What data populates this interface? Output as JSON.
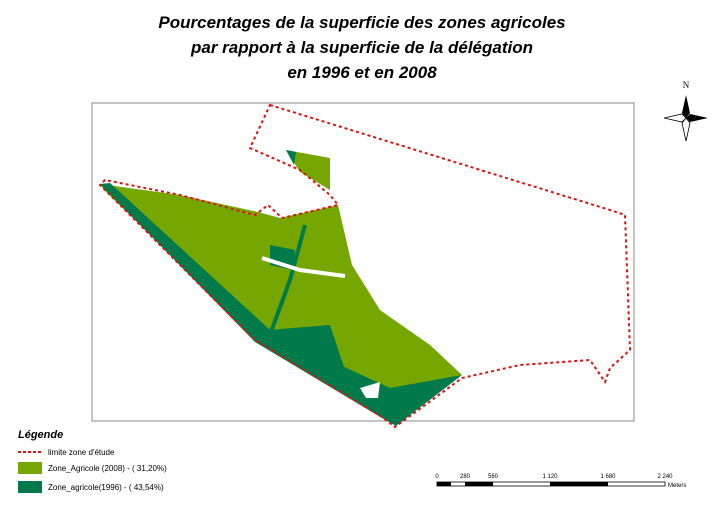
{
  "title": [
    "Pourcentages de la superficie des zones agricoles",
    "par rapport à la superficie de la délégation",
    "en 1996 et en 2008"
  ],
  "north": "N",
  "legend": {
    "title": "Légende",
    "items": [
      "limite zone d'étude",
      "Zone_Agricole (2008) - ( 31,20%)",
      "Zone_agricole(1996) - ( 43,54%)"
    ]
  },
  "scale_bar": {
    "labels": [
      "0",
      "280",
      "560",
      "1 120",
      "1 680",
      "2 240"
    ],
    "unit": "Meters"
  }
}
